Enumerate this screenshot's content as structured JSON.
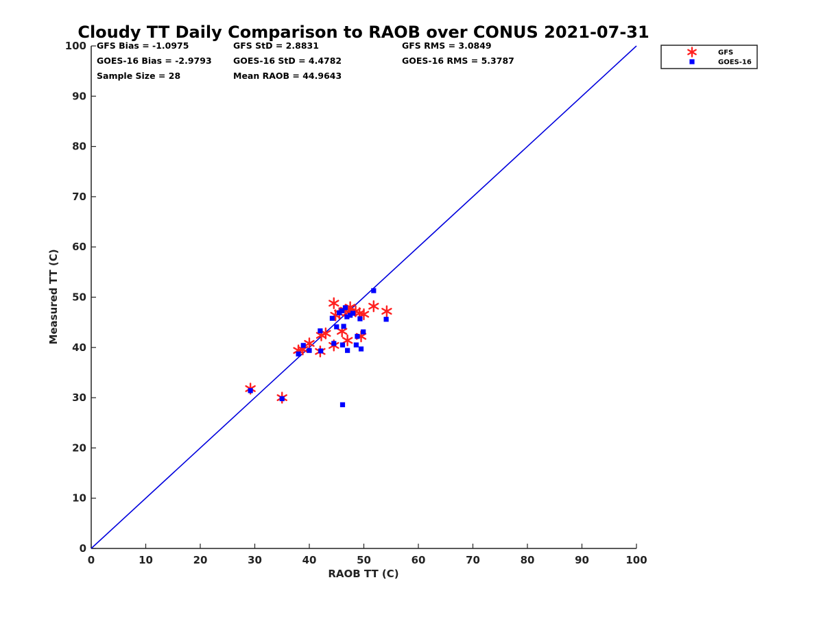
{
  "chart_data": {
    "type": "scatter",
    "title": "Cloudy TT Daily Comparison to RAOB over CONUS 2021-07-31",
    "xlabel": "RAOB TT (C)",
    "ylabel": "Measured TT (C)",
    "xlim": [
      0,
      100
    ],
    "ylim": [
      0,
      100
    ],
    "xticks": [
      "0",
      "10",
      "20",
      "30",
      "40",
      "50",
      "60",
      "70",
      "80",
      "90",
      "100"
    ],
    "yticks": [
      "0",
      "10",
      "20",
      "30",
      "40",
      "50",
      "60",
      "70",
      "80",
      "90",
      "100"
    ],
    "grid": false,
    "legend_position": "outside top-right",
    "reference_line": {
      "name": "1:1 line",
      "x": [
        0,
        100
      ],
      "y": [
        0,
        100
      ],
      "color": "#0000dd"
    },
    "stats": [
      [
        "GFS Bias = -1.0975",
        "GFS StD = 2.8831",
        "GFS RMS = 3.0849"
      ],
      [
        "GOES-16 Bias = -2.9793",
        "GOES-16 StD = 4.4782",
        "GOES-16 RMS = 5.3787"
      ],
      [
        "Sample Size = 28",
        "Mean RAOB = 44.9643",
        ""
      ]
    ],
    "series": [
      {
        "name": "GFS",
        "marker": "asterisk",
        "color": "#ff2020",
        "points": [
          [
            29.2,
            31.8
          ],
          [
            35.0,
            30.0
          ],
          [
            38.0,
            39.4
          ],
          [
            38.8,
            39.6
          ],
          [
            40.0,
            40.8
          ],
          [
            42.0,
            39.2
          ],
          [
            42.2,
            42.4
          ],
          [
            43.0,
            42.8
          ],
          [
            44.5,
            48.8
          ],
          [
            44.5,
            40.4
          ],
          [
            44.8,
            46.4
          ],
          [
            45.5,
            46.8
          ],
          [
            46.0,
            43.2
          ],
          [
            46.6,
            47.4
          ],
          [
            47.0,
            41.4
          ],
          [
            47.2,
            47.0
          ],
          [
            47.5,
            48.0
          ],
          [
            48.5,
            47.2
          ],
          [
            49.2,
            46.8
          ],
          [
            49.5,
            42.2
          ],
          [
            50.0,
            46.6
          ],
          [
            51.8,
            48.2
          ],
          [
            54.2,
            47.2
          ]
        ]
      },
      {
        "name": "GOES-16",
        "marker": "square",
        "color": "#0000ff",
        "points": [
          [
            29.2,
            31.4
          ],
          [
            35.0,
            29.8
          ],
          [
            38.0,
            38.7
          ],
          [
            38.9,
            40.4
          ],
          [
            40.0,
            39.4
          ],
          [
            42.0,
            43.3
          ],
          [
            42.1,
            39.3
          ],
          [
            44.2,
            45.8
          ],
          [
            44.5,
            40.8
          ],
          [
            45.0,
            44.1
          ],
          [
            45.5,
            46.9
          ],
          [
            46.0,
            47.3
          ],
          [
            46.1,
            40.5
          ],
          [
            46.1,
            28.6
          ],
          [
            46.3,
            44.2
          ],
          [
            46.6,
            47.9
          ],
          [
            46.9,
            46.1
          ],
          [
            47.0,
            39.4
          ],
          [
            47.5,
            46.4
          ],
          [
            48.0,
            46.8
          ],
          [
            48.6,
            40.5
          ],
          [
            48.8,
            42.2
          ],
          [
            49.3,
            45.7
          ],
          [
            49.5,
            39.7
          ],
          [
            49.9,
            43.1
          ],
          [
            51.8,
            51.3
          ],
          [
            54.1,
            45.6
          ]
        ]
      }
    ]
  }
}
